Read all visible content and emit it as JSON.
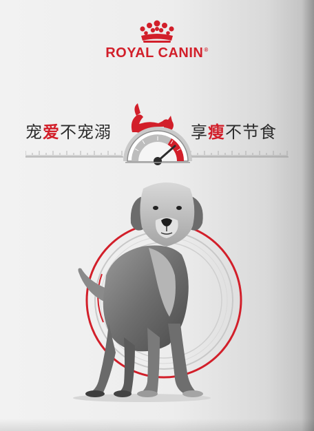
{
  "brand": {
    "name": "ROYAL CANIN",
    "trademark": "®",
    "accent_color": "#d21f2a",
    "logo_icon": "crown-icon"
  },
  "slogan": {
    "left": {
      "before": "宠",
      "highlight": "爱",
      "after": "不宠溺"
    },
    "right": {
      "before": "享",
      "highlight": "瘦",
      "after": "不节食"
    }
  },
  "gauge": {
    "icon": "cat-on-gauge-icon",
    "level": 0.8
  },
  "hero": {
    "icon": "golden-retriever-dog-icon"
  }
}
